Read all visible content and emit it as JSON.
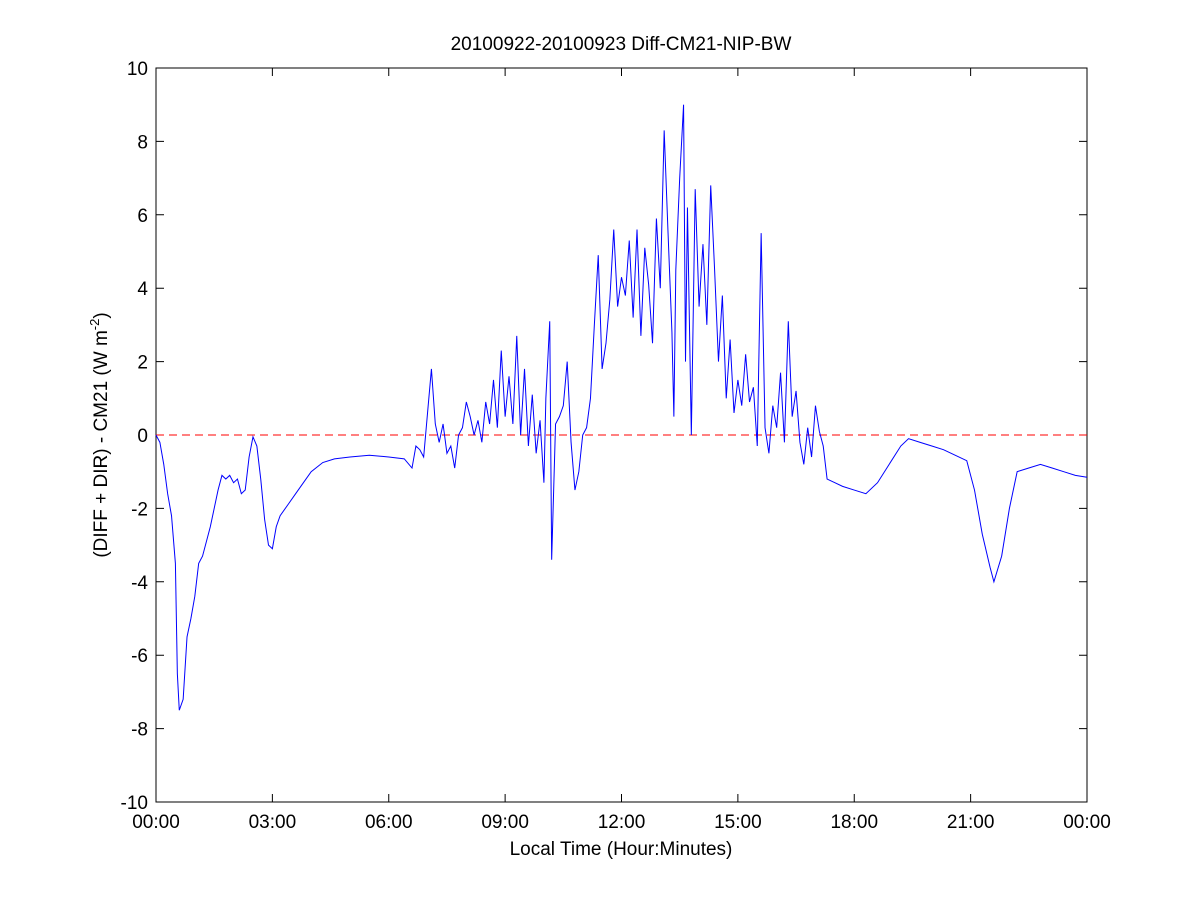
{
  "chart_data": {
    "type": "line",
    "title": "20100922-20100923 Diff-CM21-NIP-BW",
    "xlabel": "Local Time (Hour:Minutes)",
    "ylabel": {
      "text": "(DIFF + DIR) - CM21 (W m",
      "sup": "-2",
      "end": ")"
    },
    "xlim": [
      0,
      24
    ],
    "xticks": [
      {
        "value": 0,
        "label": "00:00"
      },
      {
        "value": 3,
        "label": "03:00"
      },
      {
        "value": 6,
        "label": "06:00"
      },
      {
        "value": 9,
        "label": "09:00"
      },
      {
        "value": 12,
        "label": "12:00"
      },
      {
        "value": 15,
        "label": "15:00"
      },
      {
        "value": 18,
        "label": "18:00"
      },
      {
        "value": 21,
        "label": "21:00"
      },
      {
        "value": 24,
        "label": "00:00"
      }
    ],
    "ylim": [
      -10,
      10
    ],
    "yticks": [
      -10,
      -8,
      -6,
      -4,
      -2,
      0,
      2,
      4,
      6,
      8,
      10
    ],
    "reference_line": {
      "value": 0,
      "color": "#ff0000"
    },
    "x": [
      0,
      0.1,
      0.2,
      0.3,
      0.4,
      0.5,
      0.55,
      0.6,
      0.7,
      0.8,
      0.9,
      1.0,
      1.1,
      1.2,
      1.4,
      1.6,
      1.7,
      1.8,
      1.9,
      2.0,
      2.1,
      2.2,
      2.3,
      2.4,
      2.5,
      2.6,
      2.7,
      2.8,
      2.9,
      3.0,
      3.1,
      3.2,
      3.4,
      3.6,
      3.8,
      4.0,
      4.3,
      4.6,
      5.0,
      5.5,
      6.0,
      6.4,
      6.6,
      6.7,
      6.8,
      6.9,
      7.0,
      7.1,
      7.2,
      7.3,
      7.4,
      7.5,
      7.6,
      7.7,
      7.8,
      7.9,
      8.0,
      8.1,
      8.2,
      8.3,
      8.4,
      8.5,
      8.6,
      8.7,
      8.8,
      8.9,
      9.0,
      9.1,
      9.2,
      9.3,
      9.4,
      9.5,
      9.6,
      9.7,
      9.8,
      9.9,
      10.0,
      10.05,
      10.15,
      10.2,
      10.3,
      10.4,
      10.5,
      10.6,
      10.7,
      10.8,
      10.9,
      11.0,
      11.1,
      11.2,
      11.3,
      11.4,
      11.5,
      11.6,
      11.7,
      11.8,
      11.9,
      12.0,
      12.1,
      12.2,
      12.3,
      12.4,
      12.5,
      12.6,
      12.7,
      12.8,
      12.9,
      13.0,
      13.1,
      13.2,
      13.3,
      13.35,
      13.4,
      13.5,
      13.6,
      13.65,
      13.7,
      13.8,
      13.9,
      14.0,
      14.1,
      14.2,
      14.3,
      14.4,
      14.5,
      14.6,
      14.7,
      14.8,
      14.9,
      15.0,
      15.1,
      15.2,
      15.3,
      15.4,
      15.5,
      15.6,
      15.7,
      15.8,
      15.9,
      16.0,
      16.1,
      16.2,
      16.3,
      16.4,
      16.5,
      16.6,
      16.7,
      16.8,
      16.9,
      17.0,
      17.1,
      17.2,
      17.3,
      17.5,
      17.7,
      18.0,
      18.3,
      18.6,
      18.9,
      19.2,
      19.4,
      19.7,
      20.0,
      20.3,
      20.6,
      20.9,
      21.1,
      21.3,
      21.5,
      21.6,
      21.8,
      22.0,
      22.2,
      22.5,
      22.8,
      23.1,
      23.4,
      23.7,
      24.0
    ],
    "series": [
      {
        "color": "#0000ff",
        "values": [
          0,
          -0.2,
          -0.8,
          -1.6,
          -2.2,
          -3.5,
          -6.5,
          -7.5,
          -7.2,
          -5.5,
          -5.0,
          -4.4,
          -3.5,
          -3.3,
          -2.5,
          -1.5,
          -1.1,
          -1.2,
          -1.1,
          -1.3,
          -1.2,
          -1.6,
          -1.5,
          -0.6,
          -0.05,
          -0.3,
          -1.2,
          -2.3,
          -3.0,
          -3.1,
          -2.5,
          -2.2,
          -1.9,
          -1.6,
          -1.3,
          -1.0,
          -0.75,
          -0.65,
          -0.6,
          -0.55,
          -0.6,
          -0.65,
          -0.9,
          -0.3,
          -0.4,
          -0.6,
          0.6,
          1.8,
          0.3,
          -0.2,
          0.3,
          -0.5,
          -0.3,
          -0.9,
          0.0,
          0.2,
          0.9,
          0.5,
          0.0,
          0.4,
          -0.2,
          0.9,
          0.3,
          1.5,
          0.2,
          2.3,
          0.5,
          1.6,
          0.3,
          2.7,
          0.0,
          1.8,
          -0.3,
          1.1,
          -0.5,
          0.4,
          -1.3,
          1.0,
          3.1,
          -3.4,
          0.3,
          0.5,
          0.8,
          2.0,
          -0.2,
          -1.5,
          -1.0,
          0.0,
          0.2,
          1.0,
          3.0,
          4.9,
          1.8,
          2.5,
          3.7,
          5.6,
          3.5,
          4.3,
          3.8,
          5.3,
          3.2,
          5.6,
          2.7,
          5.1,
          4.1,
          2.5,
          5.9,
          4.0,
          8.3,
          5.5,
          2.8,
          0.5,
          4.5,
          7.0,
          9.0,
          2.0,
          6.2,
          0.0,
          6.7,
          3.5,
          5.2,
          3.0,
          6.8,
          4.5,
          2.0,
          3.8,
          1.0,
          2.6,
          0.6,
          1.5,
          0.8,
          2.2,
          0.9,
          1.3,
          -0.3,
          5.5,
          0.2,
          -0.5,
          0.8,
          0.2,
          1.7,
          -0.2,
          3.1,
          0.5,
          1.2,
          -0.2,
          -0.8,
          0.2,
          -0.6,
          0.8,
          0.1,
          -0.3,
          -1.2,
          -1.3,
          -1.4,
          -1.5,
          -1.6,
          -1.3,
          -0.8,
          -0.3,
          -0.1,
          -0.2,
          -0.3,
          -0.4,
          -0.55,
          -0.7,
          -1.5,
          -2.7,
          -3.6,
          -4.0,
          -3.3,
          -2.0,
          -1.0,
          -0.9,
          -0.8,
          -0.9,
          -1.0,
          -1.1,
          -1.15
        ]
      }
    ]
  }
}
